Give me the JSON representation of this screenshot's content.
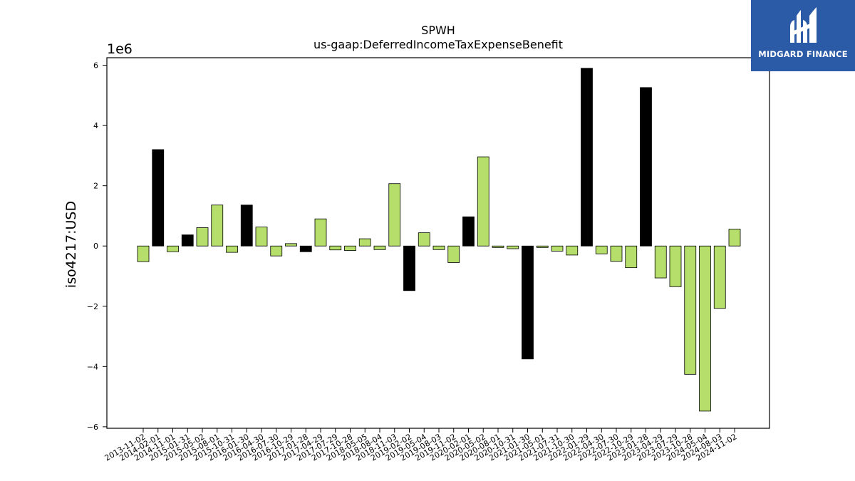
{
  "chart_data": {
    "type": "bar",
    "title": "SPWH",
    "subtitle": "us-gaap:DeferredIncomeTaxExpenseBenefit",
    "ylabel": "iso4217:USD",
    "xlabel": "",
    "y_scale_label": "1e6",
    "y_scale": 1000000,
    "ylim": [
      -6050000,
      6250000
    ],
    "yticks": [
      -6,
      -4,
      -2,
      0,
      2,
      4,
      6
    ],
    "grid": false,
    "categories": [
      "2013-11-02",
      "2014-02-01",
      "2014-11-01",
      "2015-01-31",
      "2015-05-02",
      "2015-08-01",
      "2015-10-31",
      "2016-01-30",
      "2016-04-30",
      "2016-07-30",
      "2016-10-29",
      "2017-01-28",
      "2017-04-29",
      "2017-07-29",
      "2017-10-28",
      "2018-05-05",
      "2018-08-04",
      "2018-11-03",
      "2019-02-02",
      "2019-05-04",
      "2019-08-03",
      "2019-11-02",
      "2020-02-01",
      "2020-05-02",
      "2020-08-01",
      "2020-10-31",
      "2021-01-30",
      "2021-05-01",
      "2021-07-31",
      "2021-10-30",
      "2022-01-29",
      "2022-04-30",
      "2022-07-30",
      "2022-10-29",
      "2023-01-28",
      "2023-04-29",
      "2023-07-29",
      "2023-10-28",
      "2024-05-04",
      "2024-08-03",
      "2024-11-02"
    ],
    "values": [
      -520000,
      3200000,
      -190000,
      370000,
      610000,
      1360000,
      -210000,
      1360000,
      630000,
      -330000,
      80000,
      -190000,
      900000,
      -130000,
      -150000,
      240000,
      -120000,
      2070000,
      -1480000,
      440000,
      -120000,
      -550000,
      970000,
      2960000,
      -50000,
      -90000,
      -3750000,
      -50000,
      -170000,
      -300000,
      5900000,
      -260000,
      -510000,
      -720000,
      5260000,
      -1060000,
      -1350000,
      -4260000,
      -5480000,
      -2070000,
      560000
    ],
    "bar_colors": [
      "#b5de6a",
      "#000000",
      "#b5de6a",
      "#000000",
      "#b5de6a",
      "#b5de6a",
      "#b5de6a",
      "#000000",
      "#b5de6a",
      "#b5de6a",
      "#b5de6a",
      "#000000",
      "#b5de6a",
      "#b5de6a",
      "#b5de6a",
      "#b5de6a",
      "#b5de6a",
      "#b5de6a",
      "#000000",
      "#b5de6a",
      "#b5de6a",
      "#b5de6a",
      "#000000",
      "#b5de6a",
      "#b5de6a",
      "#b5de6a",
      "#000000",
      "#b5de6a",
      "#b5de6a",
      "#b5de6a",
      "#000000",
      "#b5de6a",
      "#b5de6a",
      "#b5de6a",
      "#000000",
      "#b5de6a",
      "#b5de6a",
      "#b5de6a",
      "#b5de6a",
      "#b5de6a",
      "#b5de6a"
    ]
  },
  "logo": {
    "text": "MIDGARD FINANCE",
    "background": "#2b5aa7",
    "icon": "midgard-logo-icon"
  }
}
